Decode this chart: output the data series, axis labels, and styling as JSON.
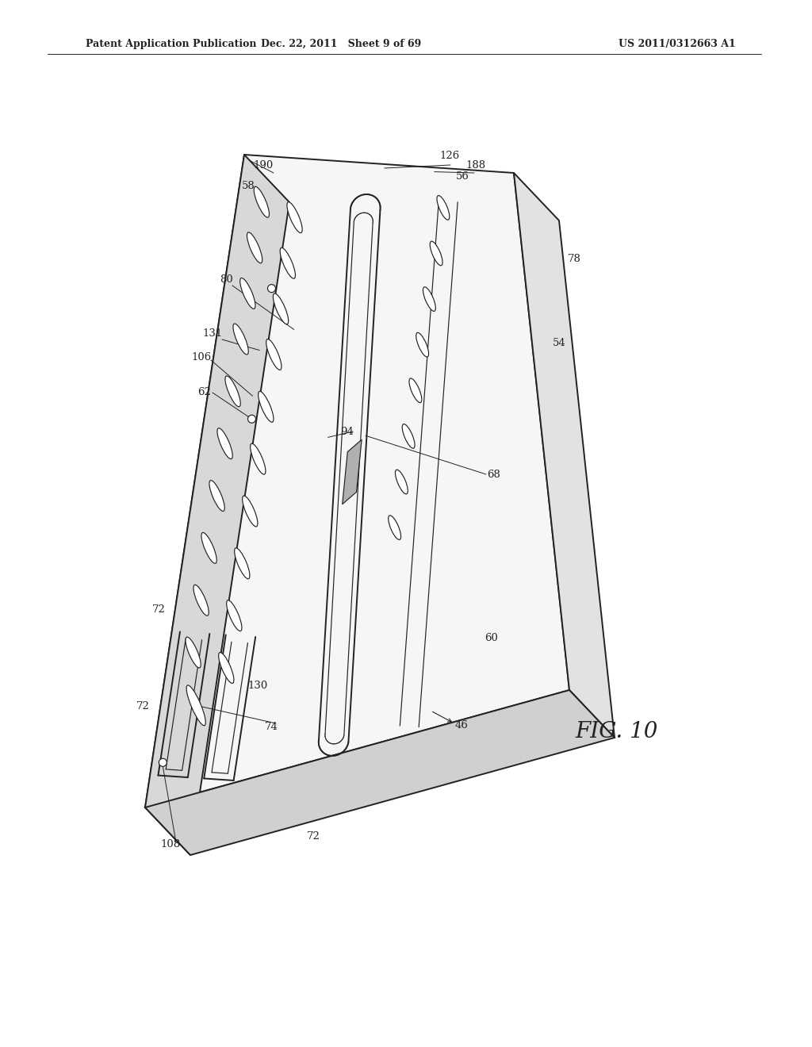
{
  "background_color": "#ffffff",
  "line_color": "#222222",
  "header_left": "Patent Application Publication",
  "header_mid": "Dec. 22, 2011   Sheet 9 of 69",
  "header_right": "US 2011/0312663 A1",
  "fig_label": "FIG. 10"
}
